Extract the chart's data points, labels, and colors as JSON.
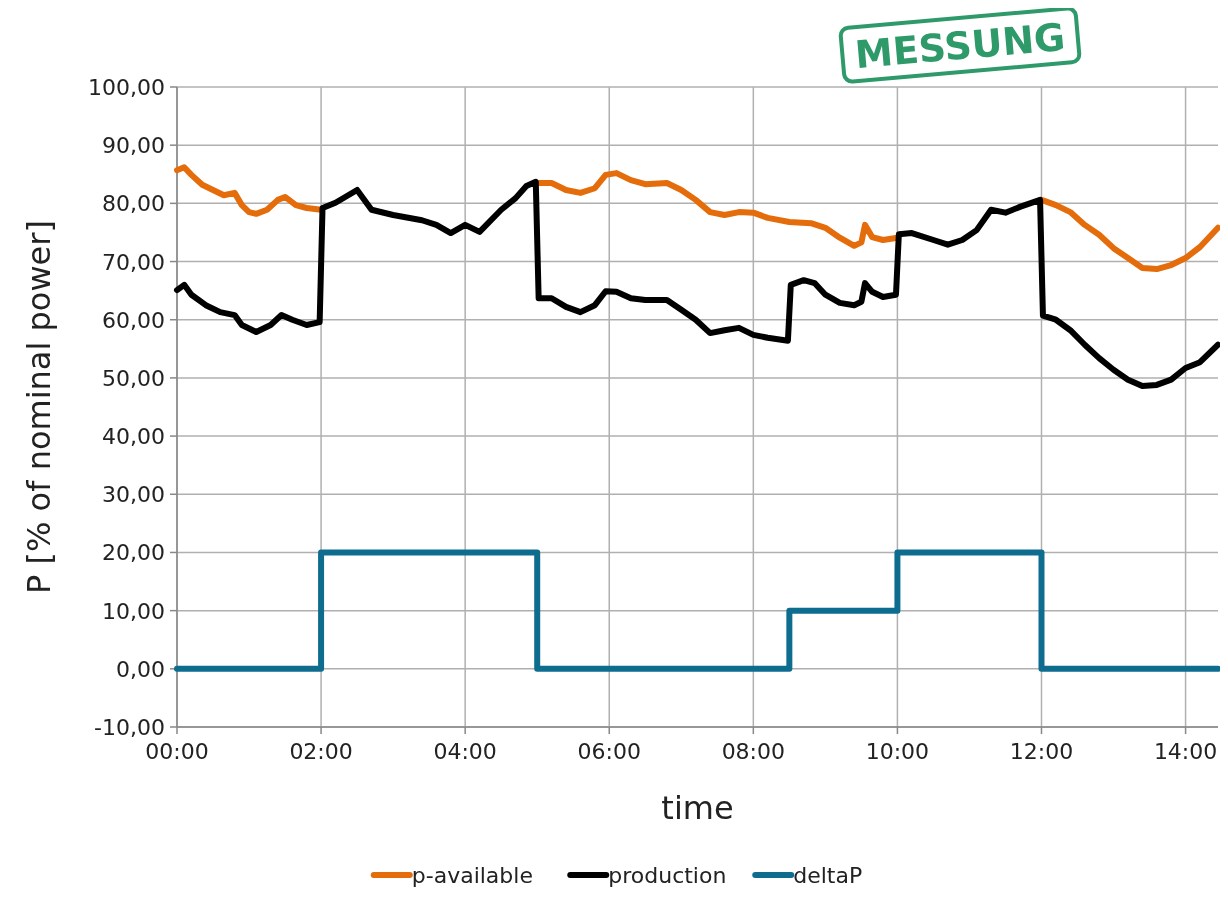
{
  "chart_data": {
    "type": "line",
    "xlabel": "time",
    "ylabel": "P [% of nominal power]",
    "annotations": [
      "MESSUNG"
    ],
    "xlim": [
      0,
      14.45
    ],
    "xticks": [
      {
        "value": 0,
        "label": "00:00"
      },
      {
        "value": 2,
        "label": "02:00"
      },
      {
        "value": 4,
        "label": "04:00"
      },
      {
        "value": 6,
        "label": "06:00"
      },
      {
        "value": 8,
        "label": "08:00"
      },
      {
        "value": 10,
        "label": "10:00"
      },
      {
        "value": 12,
        "label": "12:00"
      },
      {
        "value": 14,
        "label": "14:00"
      }
    ],
    "ylim": [
      -10,
      100
    ],
    "yticks": [
      {
        "value": -10,
        "label": "-10,00"
      },
      {
        "value": 0,
        "label": "0,00"
      },
      {
        "value": 10,
        "label": "10,00"
      },
      {
        "value": 20,
        "label": "20,00"
      },
      {
        "value": 30,
        "label": "30,00"
      },
      {
        "value": 40,
        "label": "40,00"
      },
      {
        "value": 50,
        "label": "50,00"
      },
      {
        "value": 60,
        "label": "60,00"
      },
      {
        "value": 70,
        "label": "70,00"
      },
      {
        "value": 80,
        "label": "80,00"
      },
      {
        "value": 90,
        "label": "90,00"
      },
      {
        "value": 100,
        "label": "100,00"
      }
    ],
    "grid": true,
    "legend": "bottom",
    "marker": "none",
    "line_style": "solid",
    "series": [
      {
        "name": "p-available",
        "color": "#e46c0a",
        "x": [
          0,
          0.1,
          0.2,
          0.35,
          0.5,
          0.65,
          0.8,
          0.9,
          1.0,
          1.1,
          1.25,
          1.4,
          1.5,
          1.65,
          1.8,
          2.0,
          3.5,
          5.0,
          5.2,
          5.4,
          5.6,
          5.8,
          5.95,
          6.1,
          6.3,
          6.5,
          6.8,
          7.0,
          7.2,
          7.4,
          7.6,
          7.8,
          8.0,
          8.2,
          8.5,
          8.8,
          9.0,
          9.2,
          9.4,
          9.5,
          9.55,
          9.65,
          9.8,
          10.0,
          11.0,
          12.0,
          12.2,
          12.4,
          12.6,
          12.8,
          13.0,
          13.2,
          13.4,
          13.6,
          13.8,
          14.0,
          14.2,
          14.45
        ],
        "values": [
          85.7,
          86.2,
          84.9,
          83.2,
          82.3,
          81.4,
          81.8,
          79.7,
          78.5,
          78.2,
          78.9,
          80.6,
          81.1,
          79.7,
          79.2,
          78.9,
          null,
          83.5,
          83.5,
          82.3,
          81.8,
          82.6,
          84.9,
          85.2,
          84.0,
          83.3,
          83.5,
          82.3,
          80.6,
          78.5,
          78.0,
          78.5,
          78.4,
          77.5,
          76.8,
          76.6,
          75.8,
          74.1,
          72.7,
          73.3,
          76.3,
          74.2,
          73.7,
          74.1,
          null,
          80.6,
          79.7,
          78.5,
          76.3,
          74.6,
          72.3,
          70.6,
          68.9,
          68.7,
          69.4,
          70.6,
          72.5,
          75.8
        ]
      },
      {
        "name": "production",
        "color": "#000000",
        "x": [
          0,
          0.1,
          0.2,
          0.4,
          0.6,
          0.8,
          0.9,
          1.1,
          1.3,
          1.45,
          1.6,
          1.8,
          1.98,
          2.02,
          2.2,
          2.5,
          2.7,
          3.0,
          3.4,
          3.6,
          3.8,
          4.0,
          4.2,
          4.5,
          4.7,
          4.85,
          4.98,
          5.02,
          5.2,
          5.4,
          5.6,
          5.8,
          5.95,
          6.1,
          6.3,
          6.5,
          6.8,
          7.0,
          7.2,
          7.4,
          7.6,
          7.8,
          8.0,
          8.2,
          8.48,
          8.52,
          8.7,
          8.85,
          9.0,
          9.2,
          9.4,
          9.5,
          9.55,
          9.65,
          9.8,
          9.98,
          10.02,
          10.2,
          10.5,
          10.7,
          10.9,
          11.1,
          11.3,
          11.5,
          11.7,
          11.98,
          12.02,
          12.2,
          12.4,
          12.6,
          12.8,
          13.0,
          13.2,
          13.4,
          13.6,
          13.8,
          14.0,
          14.2,
          14.45
        ],
        "values": [
          65.1,
          66.0,
          64.3,
          62.5,
          61.3,
          60.8,
          59.1,
          57.9,
          59.1,
          60.8,
          60.0,
          59.1,
          59.6,
          79.2,
          80.1,
          82.3,
          78.9,
          78.0,
          77.1,
          76.3,
          74.9,
          76.3,
          75.1,
          78.9,
          80.9,
          83.0,
          83.7,
          63.7,
          63.7,
          62.2,
          61.3,
          62.5,
          64.9,
          64.8,
          63.7,
          63.4,
          63.4,
          61.7,
          60.0,
          57.7,
          58.2,
          58.6,
          57.4,
          56.9,
          56.4,
          66.0,
          66.8,
          66.3,
          64.3,
          62.9,
          62.5,
          63.1,
          66.3,
          64.8,
          63.9,
          64.3,
          74.7,
          74.9,
          73.7,
          72.9,
          73.7,
          75.4,
          78.9,
          78.4,
          79.4,
          80.6,
          60.7,
          60.0,
          58.2,
          55.7,
          53.4,
          51.4,
          49.7,
          48.6,
          48.8,
          49.7,
          51.7,
          52.7,
          55.7
        ]
      },
      {
        "name": "deltaP",
        "type": "step",
        "color": "#0e6d8f",
        "x": [
          0,
          2,
          5,
          8.5,
          10,
          12,
          14.45
        ],
        "values": [
          0,
          20,
          0,
          10,
          20,
          0,
          0
        ]
      }
    ]
  }
}
